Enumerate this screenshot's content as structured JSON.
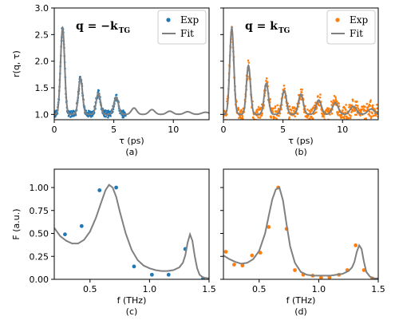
{
  "colors": {
    "exp_a": "#1f77b4",
    "exp_b": "#ff7f0e",
    "fit": "#808080"
  },
  "chart_data": [
    {
      "id": "a",
      "type": "scatter",
      "panel_label": "(a)",
      "annotation": {
        "main": "q = −k",
        "sub": "TG"
      },
      "xlabel": "τ (ps)",
      "ylabel": "r(q, τ)",
      "xlim": [
        0,
        13
      ],
      "ylim": [
        0.9,
        3.0
      ],
      "xticks": [
        0,
        5,
        10
      ],
      "yticks": [
        1.0,
        1.5,
        2.0,
        2.5,
        3.0
      ],
      "ytick_labels": [
        "1.0",
        "1.5",
        "2.0",
        "2.5",
        "3.0"
      ],
      "legend": {
        "placement": "top-right",
        "entries": [
          "Exp",
          "Fit"
        ]
      },
      "fit_model": {
        "baseline": 1.0,
        "peaks": [
          [
            0.7,
            1.62,
            0.17
          ],
          [
            2.2,
            0.68,
            0.17
          ],
          [
            3.7,
            0.4,
            0.18
          ],
          [
            5.2,
            0.32,
            0.19
          ],
          [
            6.7,
            0.12,
            0.22
          ],
          [
            8.2,
            0.09,
            0.24
          ],
          [
            9.7,
            0.06,
            0.26
          ],
          [
            11.2,
            0.05,
            0.28
          ],
          [
            12.7,
            0.04,
            0.3
          ]
        ],
        "x_range": [
          0,
          13
        ]
      },
      "exp_model": {
        "x_range": [
          0,
          6
        ],
        "noise": 0.06,
        "count": 260
      },
      "series": [
        {
          "name": "Exp"
        },
        {
          "name": "Fit"
        }
      ]
    },
    {
      "id": "b",
      "type": "scatter",
      "panel_label": "(b)",
      "annotation": {
        "main": "q = k",
        "sub": "TG"
      },
      "xlabel": "τ (ps)",
      "ylabel": "",
      "xlim": [
        0,
        13
      ],
      "ylim": [
        0.9,
        3.0
      ],
      "xticks": [
        0,
        5,
        10
      ],
      "yticks": [
        1.0,
        1.5,
        2.0,
        2.5,
        3.0
      ],
      "ytick_labels": [
        "",
        "",
        "",
        "",
        ""
      ],
      "legend": {
        "placement": "top-right",
        "entries": [
          "Exp",
          "Fit"
        ]
      },
      "fit_model": {
        "baseline": 1.0,
        "peaks": [
          [
            0.7,
            1.62,
            0.17
          ],
          [
            2.1,
            0.92,
            0.17
          ],
          [
            3.6,
            0.58,
            0.18
          ],
          [
            5.1,
            0.45,
            0.19
          ],
          [
            6.5,
            0.38,
            0.2
          ],
          [
            8.0,
            0.27,
            0.22
          ],
          [
            9.4,
            0.22,
            0.24
          ],
          [
            10.9,
            0.15,
            0.26
          ],
          [
            12.4,
            0.1,
            0.28
          ]
        ],
        "x_range": [
          0,
          13
        ]
      },
      "exp_model": {
        "x_range": [
          0,
          13
        ],
        "noise": 0.13,
        "count": 520
      },
      "series": [
        {
          "name": "Exp"
        },
        {
          "name": "Fit"
        }
      ]
    },
    {
      "id": "c",
      "type": "scatter",
      "panel_label": "(c)",
      "xlabel": "f (THz)",
      "ylabel": "F (a.u.)",
      "xlim": [
        0.2,
        1.5
      ],
      "ylim": [
        0.0,
        1.2
      ],
      "xticks": [
        0.5,
        1.0,
        1.5
      ],
      "yticks": [
        0.0,
        0.25,
        0.5,
        0.75,
        1.0
      ],
      "ytick_labels": [
        "0.00",
        "0.25",
        "0.50",
        "0.75",
        "1.00"
      ],
      "series": [
        {
          "name": "Exp",
          "x": [
            0.29,
            0.43,
            0.58,
            0.72,
            0.87,
            1.02,
            1.16,
            1.3,
            1.45
          ],
          "y": [
            0.49,
            0.58,
            0.97,
            1.0,
            0.14,
            0.05,
            0.05,
            0.33,
            0.01
          ]
        },
        {
          "name": "Fit",
          "x": [
            0.2,
            0.25,
            0.3,
            0.35,
            0.4,
            0.45,
            0.5,
            0.55,
            0.6,
            0.63,
            0.66,
            0.69,
            0.72,
            0.75,
            0.8,
            0.85,
            0.9,
            0.95,
            1.0,
            1.05,
            1.1,
            1.15,
            1.2,
            1.25,
            1.28,
            1.3,
            1.32,
            1.34,
            1.36,
            1.38,
            1.4,
            1.42,
            1.45,
            1.5
          ],
          "y": [
            0.56,
            0.47,
            0.42,
            0.39,
            0.39,
            0.43,
            0.52,
            0.67,
            0.86,
            0.97,
            1.03,
            1.0,
            0.9,
            0.74,
            0.5,
            0.32,
            0.21,
            0.15,
            0.12,
            0.1,
            0.09,
            0.09,
            0.1,
            0.13,
            0.18,
            0.26,
            0.4,
            0.49,
            0.42,
            0.25,
            0.12,
            0.05,
            0.02,
            0.01
          ]
        }
      ]
    },
    {
      "id": "d",
      "type": "scatter",
      "panel_label": "(d)",
      "xlabel": "f (THz)",
      "ylabel": "",
      "xlim": [
        0.2,
        1.5
      ],
      "ylim": [
        0.0,
        1.2
      ],
      "xticks": [
        0.5,
        1.0,
        1.5
      ],
      "yticks": [
        0.0,
        0.25,
        0.5,
        0.75,
        1.0
      ],
      "ytick_labels": [
        "",
        "",
        "",
        "",
        ""
      ],
      "series": [
        {
          "name": "Exp",
          "x": [
            0.22,
            0.29,
            0.36,
            0.44,
            0.51,
            0.58,
            0.66,
            0.73,
            0.8,
            0.87,
            0.95,
            1.02,
            1.09,
            1.17,
            1.24,
            1.31,
            1.38,
            1.45
          ],
          "y": [
            0.3,
            0.16,
            0.15,
            0.26,
            0.29,
            0.57,
            1.0,
            0.55,
            0.1,
            0.05,
            0.04,
            0.02,
            0.02,
            0.05,
            0.1,
            0.37,
            0.1,
            0.01
          ]
        },
        {
          "name": "Fit",
          "x": [
            0.2,
            0.25,
            0.3,
            0.35,
            0.4,
            0.45,
            0.5,
            0.55,
            0.58,
            0.61,
            0.64,
            0.67,
            0.7,
            0.73,
            0.76,
            0.8,
            0.85,
            0.9,
            0.95,
            1.0,
            1.05,
            1.1,
            1.15,
            1.2,
            1.25,
            1.28,
            1.3,
            1.32,
            1.34,
            1.36,
            1.38,
            1.4,
            1.43,
            1.46,
            1.5
          ],
          "y": [
            0.26,
            0.22,
            0.19,
            0.17,
            0.18,
            0.22,
            0.31,
            0.5,
            0.69,
            0.87,
            0.98,
            1.0,
            0.86,
            0.6,
            0.36,
            0.18,
            0.08,
            0.05,
            0.04,
            0.04,
            0.04,
            0.04,
            0.05,
            0.06,
            0.09,
            0.13,
            0.19,
            0.3,
            0.37,
            0.33,
            0.19,
            0.08,
            0.03,
            0.01,
            0.01
          ]
        }
      ]
    }
  ]
}
